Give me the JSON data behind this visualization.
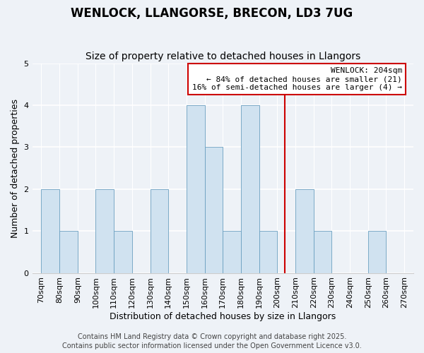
{
  "title": "WENLOCK, LLANGORSE, BRECON, LD3 7UG",
  "subtitle": "Size of property relative to detached houses in Llangors",
  "xlabel": "Distribution of detached houses by size in Llangors",
  "ylabel": "Number of detached properties",
  "bin_starts": [
    70,
    80,
    90,
    100,
    110,
    120,
    130,
    140,
    150,
    160,
    170,
    180,
    190,
    200,
    210,
    220,
    230,
    240,
    250,
    260
  ],
  "counts": [
    2,
    1,
    0,
    2,
    1,
    0,
    2,
    0,
    4,
    3,
    1,
    4,
    1,
    0,
    2,
    1,
    0,
    0,
    1,
    0
  ],
  "bar_color": "#d0e2f0",
  "bar_edge_color": "#6a9fc0",
  "ylim": [
    0,
    5
  ],
  "yticks": [
    0,
    1,
    2,
    3,
    4,
    5
  ],
  "xlim_left": 65,
  "xlim_right": 275,
  "wenlock_size": 204,
  "wenlock_line_color": "#cc0000",
  "annotation_title": "WENLOCK: 204sqm",
  "annotation_line1": "← 84% of detached houses are smaller (21)",
  "annotation_line2": "16% of semi-detached houses are larger (4) →",
  "annotation_box_color": "#ffffff",
  "annotation_box_edge_color": "#cc0000",
  "background_color": "#eef2f7",
  "grid_color": "#ffffff",
  "footer1": "Contains HM Land Registry data © Crown copyright and database right 2025.",
  "footer2": "Contains public sector information licensed under the Open Government Licence v3.0.",
  "title_fontsize": 12,
  "subtitle_fontsize": 10,
  "axis_label_fontsize": 9,
  "tick_fontsize": 8,
  "annotation_fontsize": 8,
  "footer_fontsize": 7
}
